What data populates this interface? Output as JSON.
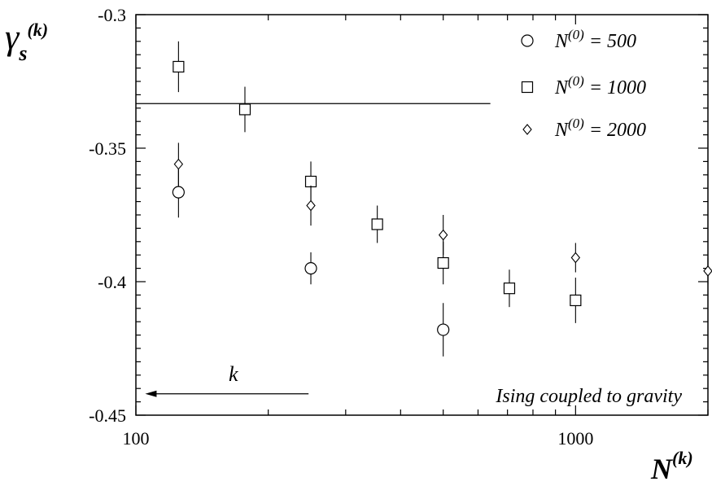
{
  "chart_data": {
    "type": "scatter",
    "title": "",
    "xlabel_main": "N",
    "xlabel_sup": "(k)",
    "ylabel_main": "γ",
    "ylabel_sub": "s",
    "ylabel_sup": "(k)",
    "xscale": "log",
    "xlim": [
      100,
      2000
    ],
    "ylim": [
      -0.45,
      -0.3
    ],
    "x_ticks": [
      100,
      1000
    ],
    "x_tick_labels": [
      "100",
      "1000"
    ],
    "y_ticks": [
      -0.45,
      -0.4,
      -0.35,
      -0.3
    ],
    "y_tick_labels": [
      "-0.45",
      "-0.4",
      "-0.35",
      "-0.3"
    ],
    "grid": false,
    "legend_position": "top-right",
    "series": [
      {
        "name": "N(0) = 500",
        "legend_main": "N",
        "legend_sup": "(0)",
        "legend_rest": " = 500",
        "marker": "circle",
        "points": [
          {
            "x": 125,
            "y": -0.3665,
            "err": 0.0095
          },
          {
            "x": 250,
            "y": -0.395,
            "err": 0.006
          },
          {
            "x": 500,
            "y": -0.418,
            "err": 0.01
          }
        ]
      },
      {
        "name": "N(0) = 1000",
        "legend_main": "N",
        "legend_sup": "(0)",
        "legend_rest": " = 1000",
        "marker": "square",
        "points": [
          {
            "x": 125,
            "y": -0.3195,
            "err": 0.0095
          },
          {
            "x": 177,
            "y": -0.3355,
            "err": 0.0085
          },
          {
            "x": 250,
            "y": -0.3625,
            "err": 0.0075
          },
          {
            "x": 354,
            "y": -0.3785,
            "err": 0.007
          },
          {
            "x": 500,
            "y": -0.393,
            "err": 0.008
          },
          {
            "x": 707,
            "y": -0.4025,
            "err": 0.007
          },
          {
            "x": 1000,
            "y": -0.407,
            "err": 0.0085
          }
        ]
      },
      {
        "name": "N(0) = 2000",
        "legend_main": "N",
        "legend_sup": "(0)",
        "legend_rest": " = 2000",
        "marker": "diamond",
        "points": [
          {
            "x": 125,
            "y": -0.356,
            "err": 0.008
          },
          {
            "x": 250,
            "y": -0.3715,
            "err": 0.0075
          },
          {
            "x": 500,
            "y": -0.3825,
            "err": 0.0075
          },
          {
            "x": 1000,
            "y": -0.391,
            "err": 0.0055
          },
          {
            "x": 2000,
            "y": -0.396,
            "err": 0.005
          }
        ]
      }
    ],
    "reference_line": {
      "y": -0.3333,
      "x_from": 100,
      "x_to": 640
    },
    "arrow": {
      "label": "k",
      "x_from": 247,
      "x_to": 105,
      "y": -0.442
    },
    "annotation": "Ising coupled to gravity"
  }
}
